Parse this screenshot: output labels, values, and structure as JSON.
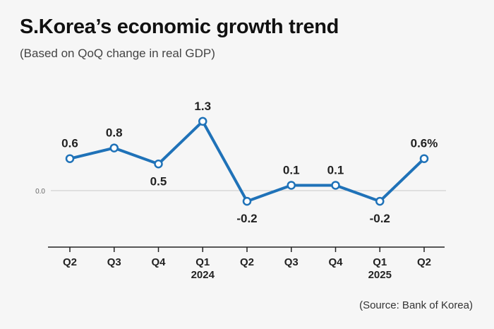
{
  "header": {
    "title": "S.Korea’s economic growth trend",
    "subtitle": "(Based on QoQ change in real GDP)"
  },
  "footer": {
    "source": "(Source: Bank of Korea)"
  },
  "chart_data": {
    "type": "line",
    "title": "S.Korea’s economic growth trend",
    "subtitle": "(Based on QoQ change in real GDP)",
    "categories": [
      "Q2",
      "Q3",
      "Q4",
      "Q1",
      "Q2",
      "Q3",
      "Q4",
      "Q1",
      "Q2"
    ],
    "year_labels": [
      {
        "index": 3,
        "label": "2024"
      },
      {
        "index": 7,
        "label": "2025"
      }
    ],
    "series": [
      {
        "values": [
          0.6,
          0.8,
          0.5,
          1.3,
          -0.2,
          0.1,
          0.1,
          -0.2,
          0.6
        ],
        "data_labels": [
          "0.6",
          "0.8",
          "0.5",
          "1.3",
          "-0.2",
          "0.1",
          "0.1",
          "-0.2",
          "0.6%"
        ],
        "color": "#1f72b8"
      }
    ],
    "zero_label": "0.0",
    "ylim": [
      -1.0,
      1.6
    ],
    "grid": false,
    "line_color": "#1f72b8",
    "reference_line_color": "#c8c8c8",
    "axis_color": "#222222"
  }
}
